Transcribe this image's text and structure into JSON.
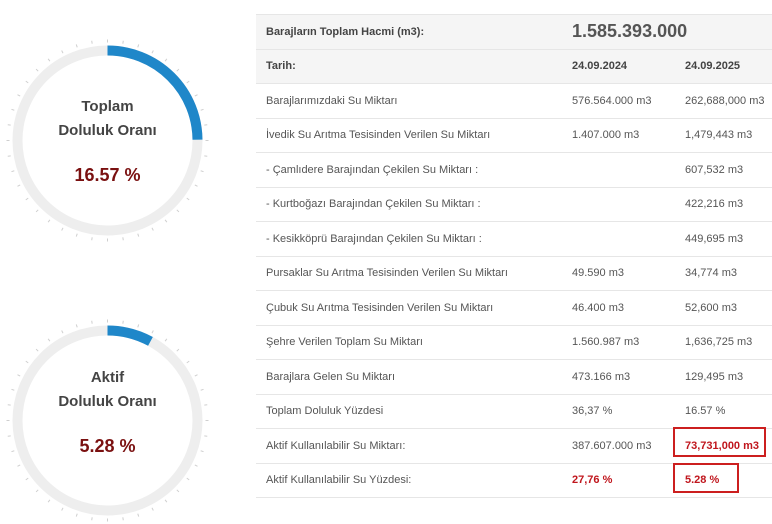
{
  "gauges": [
    {
      "label_line1": "Toplam",
      "label_line2": "Doluluk Oranı",
      "value": "16.57 %",
      "fraction": 0.1657
    },
    {
      "label_line1": "Aktif",
      "label_line2": "Doluluk Oranı",
      "value": "5.28 %",
      "fraction": 0.0528
    }
  ],
  "colors": {
    "arc": "#1f87c9",
    "track": "#eeeeee",
    "value": "#7a1010",
    "highlight": "#cc1f1f"
  },
  "table": {
    "title_label": "Barajların Toplam Hacmi (m3):",
    "title_value": "1.585.393.000",
    "date_label": "Tarih:",
    "date1": "24.09.2024",
    "date2": "24.09.2025",
    "rows": [
      {
        "label": "Barajlarımızdaki Su Miktarı",
        "v1": "576.564.000 m3",
        "v2": "262,688,000 m3"
      },
      {
        "label": "İvedik Su Arıtma Tesisinden Verilen Su Miktarı",
        "v1": "1.407.000 m3",
        "v2": "1,479,443 m3"
      },
      {
        "label": "- Çamlıdere Barajından Çekilen Su Miktarı :",
        "v1": "",
        "v2": "607,532 m3"
      },
      {
        "label": "- Kurtboğazı Barajından Çekilen Su Miktarı :",
        "v1": "",
        "v2": "422,216 m3"
      },
      {
        "label": "- Kesikköprü Barajından Çekilen Su Miktarı :",
        "v1": "",
        "v2": "449,695 m3"
      },
      {
        "label": "Pursaklar Su Arıtma Tesisinden Verilen Su Miktarı",
        "v1": "49.590 m3",
        "v2": "34,774 m3"
      },
      {
        "label": "Çubuk Su Arıtma Tesisinden Verilen Su Miktarı",
        "v1": "46.400 m3",
        "v2": "52,600 m3"
      },
      {
        "label": "Şehre Verilen Toplam Su Miktarı",
        "v1": "1.560.987 m3",
        "v2": "1,636,725 m3"
      },
      {
        "label": "Barajlara Gelen Su Miktarı",
        "v1": "473.166 m3",
        "v2": "129,495 m3"
      },
      {
        "label": "Toplam Doluluk Yüzdesi",
        "v1": "36,37 %",
        "v2": "16.57 %"
      },
      {
        "label": "Aktif Kullanılabilir Su Miktarı:",
        "v1": "387.607.000 m3",
        "v2": "73,731,000 m3"
      },
      {
        "label": "Aktif Kullanılabilir Su Yüzdesi:",
        "v1": "27,76 %",
        "v2": "5.28 %"
      }
    ]
  }
}
